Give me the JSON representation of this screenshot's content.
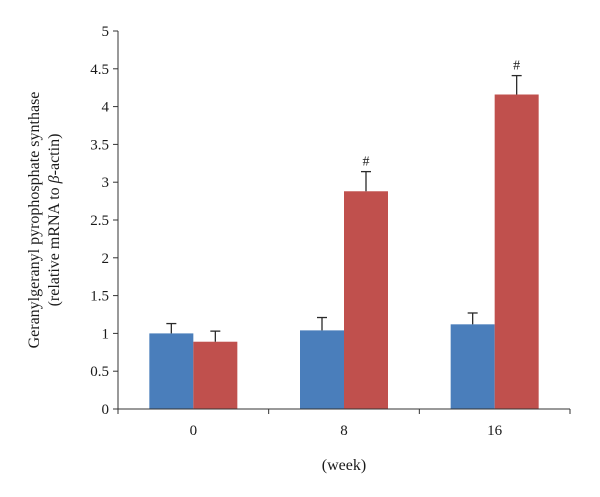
{
  "chart_data": {
    "type": "bar",
    "categories": [
      "0",
      "8",
      "16"
    ],
    "series": [
      {
        "color": "#4a7ebb",
        "values": [
          1.0,
          1.04,
          1.12
        ],
        "errors": [
          0.13,
          0.17,
          0.15
        ]
      },
      {
        "color": "#c0504d",
        "values": [
          0.89,
          2.88,
          4.16
        ],
        "errors": [
          0.14,
          0.26,
          0.25
        ],
        "annotations": [
          "",
          "#",
          "#"
        ]
      }
    ],
    "title": "",
    "xlabel": "(week)",
    "ylabel_line1": "Geranylgeranyl pyrophosphate synthase",
    "ylabel_line2_prefix": "(relative mRNA to ",
    "ylabel_line2_greek": "β",
    "ylabel_line2_suffix": "-actin)",
    "ylim": [
      0,
      5
    ],
    "yticks": [
      "0",
      "0.5",
      "1",
      "1.5",
      "2",
      "2.5",
      "3",
      "3.5",
      "4",
      "4.5",
      "5"
    ],
    "grid": false,
    "legend": "none"
  }
}
